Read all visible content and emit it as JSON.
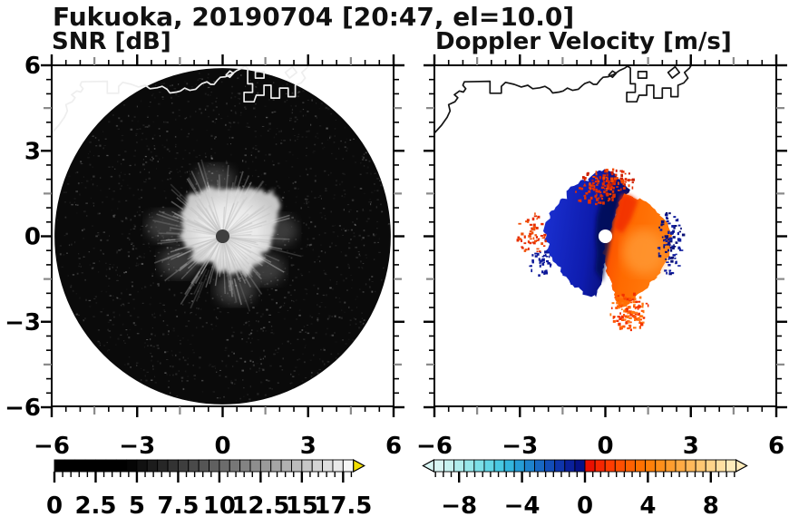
{
  "title": "Fukuoka, 20190704 [20:47, el=10.0]",
  "panels": {
    "left_subtitle": "SNR [dB]",
    "right_subtitle": "Doppler Velocity [m/s]"
  },
  "chart_data": [
    {
      "type": "heatmap",
      "title": "SNR [dB]",
      "xlabel": "",
      "ylabel": "",
      "xlim": [
        -6,
        6
      ],
      "ylim": [
        -6,
        6
      ],
      "xticks": {
        "major": [
          -6,
          -3,
          0,
          3,
          6
        ],
        "labels": [
          "−6",
          "−3",
          "0",
          "3",
          "6"
        ],
        "minor_step": 0.5,
        "mid_ticks": [
          -4.5,
          -1.5,
          1.5,
          4.5
        ]
      },
      "yticks": {
        "major": [
          -6,
          -3,
          0,
          3,
          6
        ],
        "labels": [
          "−6",
          "−3",
          "0",
          "3",
          "6"
        ],
        "minor_step": 0.5,
        "mid_ticks": [
          -4.5,
          -1.5,
          1.5,
          4.5
        ]
      },
      "grid": false,
      "colorbar": {
        "range": [
          0,
          18.125
        ],
        "cells": 29,
        "cell_step": 0.625,
        "label_values": [
          0,
          2.5,
          5,
          7.5,
          10,
          12.5,
          15,
          17.5
        ],
        "labels": [
          "0",
          "2.5",
          "5",
          "7.5",
          "10",
          "12.5",
          "15",
          "17.5"
        ],
        "major_tick_step": 2.5,
        "minor_tick_step": 0.5,
        "colormap": "grayscale",
        "black_below": 4.4,
        "white_at": 18.1,
        "overflow_arrow_color": "#f2de00",
        "arrows": [
          "right"
        ]
      },
      "features": {
        "scan_disk": {
          "center": [
            0,
            0
          ],
          "radius_km": 5.9,
          "color": "#0a0a0a"
        },
        "radar_dot": {
          "center": [
            0,
            0
          ],
          "radius_km": 0.24,
          "color": "#3f3f3f"
        },
        "echo_core": {
          "center": [
            0,
            0
          ],
          "snr_db": "≈15-18",
          "color": "#ededed",
          "shape": "irregular bright blob with radial streaks",
          "outline_km": [
            [
              1.75,
              0
            ],
            [
              1.9,
              0.5
            ],
            [
              2.02,
              1.12
            ],
            [
              1.75,
              1.6
            ],
            [
              1.45,
              1.5
            ],
            [
              1.4,
              1.62
            ],
            [
              0.9,
              1.7
            ],
            [
              0.45,
              1.68
            ],
            [
              0.0,
              1.62
            ],
            [
              -0.45,
              1.75
            ],
            [
              -0.85,
              1.5
            ],
            [
              -1.25,
              1.45
            ],
            [
              -1.3,
              1.1
            ],
            [
              -1.45,
              0.85
            ],
            [
              -1.42,
              0.4
            ],
            [
              -1.5,
              0.0
            ],
            [
              -1.28,
              -0.35
            ],
            [
              -1.05,
              -0.52
            ],
            [
              -1.12,
              -0.8
            ],
            [
              -0.85,
              -0.9
            ],
            [
              -0.6,
              -1.05
            ],
            [
              -0.55,
              -0.75
            ],
            [
              -0.3,
              -0.95
            ],
            [
              -0.2,
              -1.3
            ],
            [
              0.1,
              -1.15
            ],
            [
              0.35,
              -1.4
            ],
            [
              0.6,
              -1.2
            ],
            [
              0.9,
              -1.35
            ],
            [
              1.1,
              -1.0
            ],
            [
              1.45,
              -0.95
            ],
            [
              1.35,
              -0.6
            ],
            [
              1.62,
              -0.4
            ]
          ]
        },
        "diffuse_patches_km": [
          [
            -1.95,
            0.35
          ],
          [
            -1.5,
            -0.9
          ],
          [
            0.45,
            -1.85
          ],
          [
            1.45,
            -1.15
          ],
          [
            -0.3,
            1.95
          ],
          [
            1.9,
            0.2
          ]
        ],
        "background_noise": {
          "speckle_count": 1600,
          "color": "#ffffff"
        }
      }
    },
    {
      "type": "heatmap",
      "title": "Doppler Velocity [m/s]",
      "xlabel": "",
      "ylabel": "",
      "xlim": [
        -6,
        6
      ],
      "ylim": [
        -6,
        6
      ],
      "xticks": {
        "major": [
          -6,
          -3,
          0,
          3,
          6
        ],
        "labels": [
          "−6",
          "−3",
          "0",
          "3",
          "6"
        ],
        "minor_step": 0.5,
        "mid_ticks": [
          -4.5,
          -1.5,
          1.5,
          4.5
        ]
      },
      "yticks": {
        "major": [
          -6,
          -3,
          0,
          3,
          6
        ],
        "labels": [
          "−6",
          "−3",
          "0",
          "3",
          "6"
        ],
        "minor_step": 0.5,
        "mid_ticks": [
          -4.5,
          -1.5,
          1.5,
          4.5
        ]
      },
      "grid": false,
      "colorbar": {
        "range": [
          -9.6,
          9.6
        ],
        "cells": 30,
        "cell_step": 0.64,
        "label_values": [
          -8,
          -4,
          0,
          4,
          8
        ],
        "labels": [
          "−8",
          "−4",
          "0",
          "4",
          "8"
        ],
        "major_tick_step": 4,
        "minor_tick_step": 0.5,
        "arrows": [
          "left",
          "right"
        ],
        "cell_colors": [
          "#d8f6f4",
          "#c6f2f0",
          "#b0eded",
          "#97e7ea",
          "#7cdfe7",
          "#62d5e5",
          "#48c8e2",
          "#33b5dd",
          "#259cd6",
          "#1d82cd",
          "#1767c3",
          "#124db8",
          "#0e35ac",
          "#0a209b",
          "#061187",
          "#ea1000",
          "#f62600",
          "#ff3c00",
          "#ff4f00",
          "#ff6100",
          "#ff7100",
          "#ff8009",
          "#ff8f1a",
          "#ff9d2e",
          "#ffab44",
          "#ffb95b",
          "#ffc772",
          "#ffd48a",
          "#ffe0a2",
          "#ffecbb"
        ]
      },
      "features": {
        "radar_dot": {
          "center": [
            0,
            0
          ],
          "radius_km": 0.24,
          "color": "#ffffff"
        },
        "negative_region": {
          "side": "west and north of radar (flow toward radar)",
          "velocity_mps": "≈ −4 to −8",
          "colors": [
            "#1b33d4",
            "#070c62"
          ],
          "outline_km": [
            [
              0.62,
              1.92
            ],
            [
              0.3,
              2.18
            ],
            [
              0.05,
              2.36
            ],
            [
              -0.25,
              2.28
            ],
            [
              -0.55,
              2.12
            ],
            [
              -0.6,
              1.95
            ],
            [
              -0.9,
              1.93
            ],
            [
              -1.18,
              1.71
            ],
            [
              -1.4,
              1.52
            ],
            [
              -1.35,
              1.32
            ],
            [
              -1.6,
              1.25
            ],
            [
              -1.78,
              1.0
            ],
            [
              -1.95,
              0.78
            ],
            [
              -1.9,
              0.58
            ],
            [
              -2.1,
              0.45
            ],
            [
              -2.18,
              0.2
            ],
            [
              -2.05,
              0.05
            ],
            [
              -2.12,
              -0.15
            ],
            [
              -1.95,
              -0.3
            ],
            [
              -2.1,
              -0.5
            ],
            [
              -1.92,
              -0.65
            ],
            [
              -1.8,
              -0.9
            ],
            [
              -1.6,
              -1.1
            ],
            [
              -1.55,
              -1.35
            ],
            [
              -1.35,
              -1.45
            ],
            [
              -1.2,
              -1.68
            ],
            [
              -0.95,
              -1.8
            ],
            [
              -0.75,
              -2.0
            ],
            [
              -0.5,
              -2.1
            ],
            [
              -0.32,
              -2.12
            ],
            [
              -0.25,
              -1.9
            ],
            [
              -0.12,
              -1.62
            ],
            [
              -0.1,
              -1.3
            ],
            [
              -0.02,
              -1.05
            ],
            [
              0.0,
              -0.75
            ],
            [
              0.05,
              -0.45
            ],
            [
              0.1,
              -0.15
            ],
            [
              0.18,
              0.1
            ],
            [
              0.25,
              0.45
            ],
            [
              0.4,
              0.8
            ],
            [
              0.52,
              1.1
            ],
            [
              0.68,
              1.4
            ],
            [
              0.85,
              1.55
            ],
            [
              0.8,
              1.75
            ]
          ]
        },
        "positive_region": {
          "side": "east and southeast of radar (flow away from radar)",
          "velocity_mps": "≈ +3 to +7",
          "colors": [
            "#f23000",
            "#ff8c28"
          ],
          "outline_km": [
            [
              0.62,
              1.5
            ],
            [
              0.85,
              1.42
            ],
            [
              1.1,
              1.3
            ],
            [
              1.35,
              1.28
            ],
            [
              1.55,
              1.12
            ],
            [
              1.78,
              0.95
            ],
            [
              1.95,
              0.72
            ],
            [
              2.12,
              0.55
            ],
            [
              2.25,
              0.3
            ],
            [
              2.32,
              0.05
            ],
            [
              2.3,
              -0.25
            ],
            [
              2.25,
              -0.5
            ],
            [
              2.18,
              -0.78
            ],
            [
              2.05,
              -1.05
            ],
            [
              1.9,
              -1.3
            ],
            [
              1.7,
              -1.5
            ],
            [
              1.52,
              -1.72
            ],
            [
              1.3,
              -1.9
            ],
            [
              1.1,
              -2.1
            ],
            [
              0.88,
              -2.3
            ],
            [
              0.68,
              -2.5
            ],
            [
              0.45,
              -2.42
            ],
            [
              0.35,
              -2.15
            ],
            [
              0.28,
              -1.85
            ],
            [
              0.15,
              -1.55
            ],
            [
              0.05,
              -1.25
            ],
            [
              -0.02,
              -0.95
            ],
            [
              -0.05,
              -0.6
            ],
            [
              -0.02,
              -0.3
            ],
            [
              0.08,
              -0.02
            ],
            [
              0.2,
              0.25
            ],
            [
              0.3,
              0.6
            ],
            [
              0.42,
              0.95
            ],
            [
              0.52,
              1.25
            ]
          ]
        },
        "speckle_regions": [
          {
            "name": "zero-isodop red speckle, north",
            "center": [
              0.1,
              1.95
            ],
            "rx": 1.0,
            "ry": 0.45,
            "n": 110,
            "colors": [
              "#e62e00",
              "#f54a00",
              "#cc1f00"
            ]
          },
          {
            "name": "aliased navy fringe, east edge",
            "center": [
              2.25,
              -0.15
            ],
            "rx": 0.45,
            "ry": 1.15,
            "n": 90,
            "colors": [
              "#0a1076",
              "#101d9e"
            ]
          },
          {
            "name": "orange speckle, south",
            "center": [
              0.8,
              -2.6
            ],
            "rx": 0.75,
            "ry": 0.65,
            "n": 130,
            "colors": [
              "#ff5500",
              "#f23000",
              "#ff7711"
            ]
          },
          {
            "name": "red clusters, west",
            "center": [
              -2.6,
              0.1
            ],
            "rx": 0.55,
            "ry": 0.75,
            "n": 55,
            "colors": [
              "#e62e00",
              "#f0500a"
            ]
          },
          {
            "name": "blue outliers, southwest",
            "center": [
              -2.3,
              -0.9
            ],
            "rx": 0.4,
            "ry": 0.45,
            "n": 35,
            "colors": [
              "#0d1899"
            ]
          },
          {
            "name": "red sprinkle inside blue, north",
            "center": [
              -0.3,
              1.5
            ],
            "rx": 0.8,
            "ry": 0.4,
            "n": 45,
            "colors": [
              "#e03000"
            ]
          }
        ]
      }
    }
  ],
  "coastline": {
    "color_left_panel": "#eeeeee",
    "color_right_panel": "#141414",
    "main_km": [
      [
        -6.0,
        3.62
      ],
      [
        -5.75,
        3.9
      ],
      [
        -5.55,
        4.18
      ],
      [
        -5.45,
        4.4
      ],
      [
        -5.5,
        4.62
      ],
      [
        -5.28,
        4.72
      ],
      [
        -5.18,
        4.86
      ],
      [
        -5.3,
        4.97
      ],
      [
        -5.12,
        5.1
      ],
      [
        -4.98,
        5.06
      ],
      [
        -4.9,
        5.18
      ],
      [
        -5.0,
        5.3
      ],
      [
        -4.95,
        5.42
      ],
      [
        -4.05,
        5.44
      ],
      [
        -4.05,
        5.02
      ],
      [
        -3.65,
        5.02
      ],
      [
        -3.65,
        5.26
      ],
      [
        -3.5,
        5.4
      ],
      [
        -3.2,
        5.33
      ],
      [
        -2.95,
        5.24
      ],
      [
        -2.72,
        5.3
      ],
      [
        -2.55,
        5.18
      ],
      [
        -2.3,
        5.21
      ],
      [
        -2.12,
        5.26
      ],
      [
        -1.95,
        5.16
      ],
      [
        -1.85,
        5.03
      ],
      [
        -1.62,
        5.06
      ],
      [
        -1.48,
        5.1
      ],
      [
        -1.33,
        5.2
      ],
      [
        -1.15,
        5.12
      ],
      [
        -0.95,
        5.16
      ],
      [
        -0.8,
        5.3
      ],
      [
        -0.72,
        5.36
      ],
      [
        -0.55,
        5.42
      ],
      [
        -0.42,
        5.33
      ],
      [
        -0.3,
        5.33
      ],
      [
        -0.18,
        5.48
      ],
      [
        -0.08,
        5.58
      ],
      [
        0.1,
        5.6
      ],
      [
        0.3,
        5.68
      ],
      [
        0.5,
        5.82
      ],
      [
        0.68,
        5.9
      ],
      [
        0.78,
        5.97
      ],
      [
        0.88,
        5.9
      ],
      [
        0.88,
        5.35
      ],
      [
        1.05,
        5.35
      ],
      [
        1.05,
        5.05
      ],
      [
        0.75,
        5.05
      ],
      [
        0.75,
        4.72
      ],
      [
        1.1,
        4.72
      ],
      [
        1.18,
        4.95
      ],
      [
        1.45,
        4.95
      ],
      [
        1.45,
        5.3
      ],
      [
        1.7,
        5.3
      ],
      [
        1.7,
        4.85
      ],
      [
        2.0,
        4.85
      ],
      [
        2.0,
        5.2
      ],
      [
        2.3,
        5.2
      ],
      [
        2.3,
        4.9
      ],
      [
        2.55,
        4.9
      ],
      [
        2.55,
        5.3
      ],
      [
        2.75,
        5.38
      ],
      [
        2.9,
        5.55
      ],
      [
        2.78,
        5.75
      ],
      [
        2.95,
        5.9
      ],
      [
        3.05,
        6.05
      ]
    ],
    "island_loop_km": [
      [
        0.12,
        5.66
      ],
      [
        0.25,
        5.8
      ],
      [
        0.38,
        5.72
      ],
      [
        0.25,
        5.58
      ]
    ],
    "block_loops_km": [
      [
        [
          2.35,
          5.55
        ],
        [
          2.6,
          5.75
        ],
        [
          2.45,
          5.95
        ],
        [
          2.2,
          5.75
        ]
      ],
      [
        [
          1.15,
          5.55
        ],
        [
          1.45,
          5.55
        ],
        [
          1.45,
          5.78
        ],
        [
          1.15,
          5.78
        ]
      ]
    ]
  }
}
